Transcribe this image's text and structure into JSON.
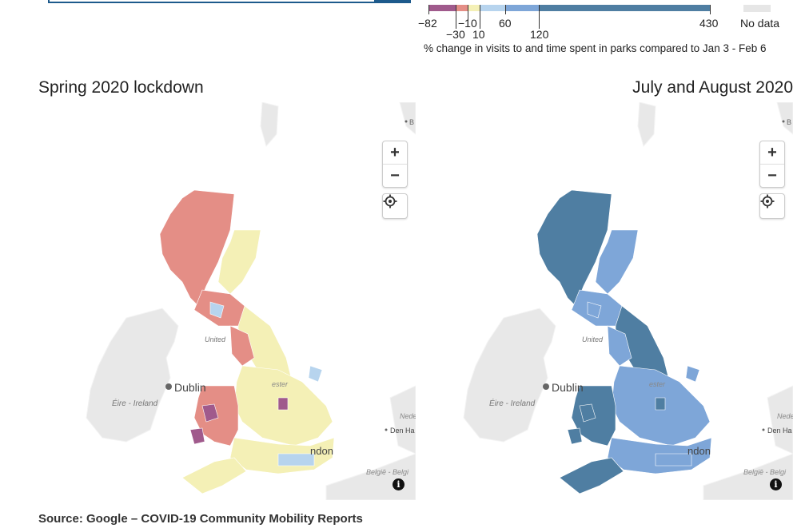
{
  "legend": {
    "caption": "% change in visits to and time spent in parks compared to Jan 3 - Feb 6",
    "tick_labels": [
      "−82",
      "−30",
      "−10",
      "10",
      "60",
      "120",
      "430"
    ],
    "no_data_label": "No data",
    "bins": [
      {
        "from": -82,
        "to": -30,
        "color": "#a05a8c"
      },
      {
        "from": -30,
        "to": -10,
        "color": "#e48e86"
      },
      {
        "from": -10,
        "to": 10,
        "color": "#f4f0b6"
      },
      {
        "from": 10,
        "to": 60,
        "color": "#b7d4ee"
      },
      {
        "from": 60,
        "to": 120,
        "color": "#7ea6d8"
      },
      {
        "from": 120,
        "to": 430,
        "color": "#4f7ea2"
      }
    ],
    "no_data_color": "#e6e6e6"
  },
  "maps": [
    {
      "title": "Spring 2020 lockdown",
      "labels": {
        "dublin": "Dublin",
        "ireland": "Éire - Ireland",
        "uk": "United",
        "london": "ndon",
        "belgie": "België - Belgi",
        "nederland": "Nede",
        "denhaag": "Den Ha",
        "manchester": "ester",
        "b": "B"
      },
      "colors": {
        "scotland": "#e48e86",
        "east_scotland": "#f4f0b6",
        "north_england": "#f4f0b6",
        "wales": "#e48e86",
        "midlands": "#f4f0b6",
        "south": "#f4f0b6",
        "southwest": "#f4f0b6",
        "cumbria": "#e48e86",
        "accent": "#a05a8c",
        "blue": "#b7d4ee"
      }
    },
    {
      "title": "July and August 2020",
      "labels": {
        "dublin": "Dublin",
        "ireland": "Éire - Ireland",
        "uk": "United",
        "london": "ndon",
        "belgie": "België - Belgi",
        "nederland": "Nede",
        "denhaag": "Den Ha",
        "manchester": "ester",
        "b": "B"
      },
      "colors": {
        "scotland": "#4f7ea2",
        "east_scotland": "#7ea6d8",
        "north_england": "#4f7ea2",
        "wales": "#4f7ea2",
        "midlands": "#7ea6d8",
        "south": "#7ea6d8",
        "southwest": "#4f7ea2",
        "cumbria": "#7ea6d8",
        "accent": "#4f7ea2",
        "blue": "#7ea6d8"
      }
    }
  ],
  "controls": {
    "zoom_in": "+",
    "zoom_out": "−",
    "info": "i"
  },
  "source": "Source: Google – COVID-19 Community Mobility Reports"
}
